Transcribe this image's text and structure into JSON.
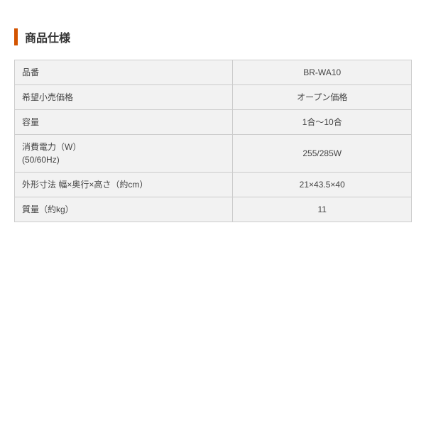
{
  "section": {
    "title": "商品仕様"
  },
  "table": {
    "rows": [
      {
        "label": "品番",
        "value": "BR-WA10"
      },
      {
        "label": "希望小売価格",
        "value": "オープン価格"
      },
      {
        "label": "容量",
        "value": "1合～10合"
      },
      {
        "label": "消費電力（W）\n(50/60Hz)",
        "value": "255/285W"
      },
      {
        "label": "外形寸法 幅×奥行×高さ（約cm）",
        "value": "21×43.5×40"
      },
      {
        "label": "質量（約kg）",
        "value": "11"
      }
    ],
    "style": {
      "border_color": "#cccccc",
      "cell_bg": "#f2f2f2",
      "text_color": "#444444",
      "font_size": 12,
      "label_width_pct": 55,
      "value_width_pct": 45
    }
  },
  "style": {
    "accent_color": "#d35400",
    "title_color": "#333333",
    "title_fontsize": 16,
    "background": "#ffffff"
  }
}
